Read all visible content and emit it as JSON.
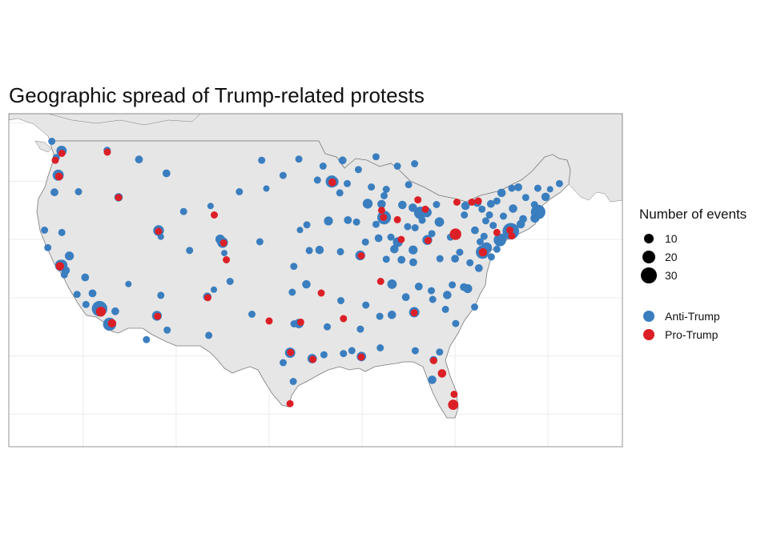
{
  "title": "Geographic spread of Trump-related protests",
  "legend": {
    "size_title": "Number of events",
    "sizes": [
      {
        "label": "10",
        "value": 10
      },
      {
        "label": "20",
        "value": 20
      },
      {
        "label": "30",
        "value": 30
      }
    ],
    "colors": [
      {
        "label": "Anti-Trump",
        "color": "#3a7ebf"
      },
      {
        "label": "Pro-Trump",
        "color": "#dc1f26"
      }
    ]
  },
  "colors": {
    "land": "#e6e6e6",
    "border": "#7a7a7a",
    "grid": "#ececec",
    "anti": "#3a7ebf",
    "pro": "#dc1f26"
  },
  "chart_data": {
    "type": "scatter",
    "x_axis": "longitude",
    "y_axis": "latitude",
    "xlim": [
      -128,
      -62
    ],
    "ylim": [
      22.2,
      50.8
    ],
    "size_variable": "number of events",
    "anti_trump": [
      [
        -122.42,
        37.77,
        12
      ],
      [
        -122.27,
        37.8,
        10
      ],
      [
        -121.89,
        37.34,
        5
      ],
      [
        -121.49,
        38.58,
        6
      ],
      [
        -122.03,
        36.97,
        3
      ],
      [
        -122.68,
        45.52,
        11
      ],
      [
        -122.33,
        47.61,
        9
      ],
      [
        -123.09,
        44.05,
        4
      ],
      [
        -123.37,
        48.43,
        3
      ],
      [
        -122.9,
        47.04,
        3
      ],
      [
        -118.24,
        34.05,
        26
      ],
      [
        -117.16,
        32.72,
        17
      ],
      [
        -116.55,
        33.83,
        4
      ],
      [
        -119.0,
        35.37,
        4
      ],
      [
        -119.79,
        36.74,
        4
      ],
      [
        -115.14,
        36.17,
        2
      ],
      [
        -111.89,
        40.76,
        10
      ],
      [
        -111.65,
        40.23,
        2
      ],
      [
        -112.07,
        33.45,
        8
      ],
      [
        -110.97,
        32.22,
        3
      ],
      [
        -105.0,
        39.74,
        10
      ],
      [
        -105.27,
        40.01,
        7
      ],
      [
        -104.82,
        38.83,
        2
      ],
      [
        -106.65,
        35.08,
        5
      ],
      [
        -105.94,
        35.69,
        2
      ],
      [
        -116.2,
        43.62,
        5
      ],
      [
        -117.43,
        47.66,
        3
      ],
      [
        -114.0,
        46.87,
        4
      ],
      [
        -111.04,
        45.68,
        4
      ],
      [
        -106.3,
        42.87,
        2
      ],
      [
        -97.74,
        30.27,
        9
      ],
      [
        -96.8,
        32.78,
        7
      ],
      [
        -95.37,
        29.76,
        7
      ],
      [
        -98.49,
        29.42,
        3
      ],
      [
        -97.33,
        32.75,
        3
      ],
      [
        -97.52,
        35.47,
        3
      ],
      [
        -95.99,
        36.15,
        5
      ],
      [
        -97.34,
        37.69,
        3
      ],
      [
        -94.58,
        39.1,
        5
      ],
      [
        -95.68,
        39.05,
        3
      ],
      [
        -96.68,
        40.81,
        2
      ],
      [
        -95.94,
        41.26,
        3
      ],
      [
        -93.27,
        44.98,
        14
      ],
      [
        -93.09,
        44.95,
        9
      ],
      [
        -92.1,
        46.79,
        4
      ],
      [
        -93.62,
        41.59,
        6
      ],
      [
        -91.53,
        41.66,
        4
      ],
      [
        -89.4,
        43.07,
        8
      ],
      [
        -87.91,
        43.04,
        5
      ],
      [
        -87.63,
        41.88,
        19
      ],
      [
        -88.23,
        40.11,
        4
      ],
      [
        -89.64,
        39.78,
        3
      ],
      [
        -90.2,
        38.63,
        8
      ],
      [
        -92.33,
        38.95,
        3
      ],
      [
        -90.07,
        29.95,
        7
      ],
      [
        -90.18,
        32.3,
        3
      ],
      [
        -92.29,
        34.75,
        3
      ],
      [
        -86.78,
        36.16,
        7
      ],
      [
        -86.8,
        33.52,
        5
      ],
      [
        -84.39,
        33.75,
        9
      ],
      [
        -84.28,
        30.44,
        3
      ],
      [
        -82.46,
        27.95,
        5
      ],
      [
        -81.38,
        28.54,
        3
      ],
      [
        -80.19,
        25.76,
        4
      ],
      [
        -82.32,
        29.65,
        4
      ],
      [
        -81.66,
        30.33,
        3
      ],
      [
        -80.84,
        35.23,
        5
      ],
      [
        -78.64,
        35.78,
        6
      ],
      [
        -79.05,
        35.91,
        4
      ],
      [
        -77.44,
        37.54,
        4
      ],
      [
        -77.04,
        38.91,
        18
      ],
      [
        -76.61,
        39.29,
        10
      ],
      [
        -75.17,
        39.95,
        15
      ],
      [
        -74.0,
        40.71,
        30
      ],
      [
        -73.93,
        40.68,
        10
      ],
      [
        -72.93,
        41.31,
        5
      ],
      [
        -72.68,
        41.76,
        4
      ],
      [
        -71.06,
        42.36,
        22
      ],
      [
        -71.41,
        41.82,
        6
      ],
      [
        -71.46,
        42.99,
        3
      ],
      [
        -73.2,
        44.48,
        4
      ],
      [
        -73.76,
        42.65,
        5
      ],
      [
        -76.15,
        43.05,
        4
      ],
      [
        -77.61,
        43.16,
        5
      ],
      [
        -78.88,
        42.89,
        5
      ],
      [
        -75.0,
        44.0,
        5
      ],
      [
        -70.26,
        43.66,
        5
      ],
      [
        -69.78,
        44.31,
        2
      ],
      [
        -68.77,
        44.8,
        3
      ],
      [
        -79.99,
        40.44,
        9
      ],
      [
        -77.86,
        40.79,
        4
      ],
      [
        -76.88,
        40.27,
        3
      ],
      [
        -82.99,
        39.96,
        8
      ],
      [
        -81.69,
        41.5,
        7
      ],
      [
        -84.51,
        39.1,
        6
      ],
      [
        -83.54,
        41.65,
        3
      ],
      [
        -83.05,
        42.33,
        8
      ],
      [
        -83.74,
        42.28,
        15
      ],
      [
        -84.55,
        42.73,
        5
      ],
      [
        -85.67,
        42.96,
        5
      ],
      [
        -86.16,
        39.77,
        8
      ],
      [
        -86.53,
        39.17,
        5
      ],
      [
        -85.76,
        38.25,
        4
      ],
      [
        -84.5,
        38.04,
        4
      ],
      [
        -80.0,
        38.35,
        4
      ],
      [
        -81.63,
        38.35,
        3
      ],
      [
        -81.03,
        34.0,
        3
      ],
      [
        -82.4,
        34.85,
        3
      ],
      [
        -79.93,
        32.78,
        3
      ],
      [
        -88.05,
        30.69,
        3
      ],
      [
        -87.63,
        43.75,
        3
      ],
      [
        -89.0,
        44.5,
        3
      ],
      [
        -90.4,
        46.0,
        3
      ],
      [
        -84.35,
        46.5,
        3
      ],
      [
        -86.2,
        46.3,
        3
      ],
      [
        -88.5,
        47.1,
        3
      ],
      [
        -87.4,
        44.3,
        3
      ],
      [
        -85.0,
        44.7,
        3
      ],
      [
        -82.0,
        43.0,
        3
      ],
      [
        -79.0,
        42.1,
        3
      ],
      [
        -75.5,
        43.3,
        3
      ],
      [
        -74.8,
        42.0,
        3
      ],
      [
        -77.1,
        42.6,
        3
      ],
      [
        -80.5,
        40.2,
        3
      ],
      [
        -82.5,
        40.5,
        3
      ],
      [
        -84.3,
        41.0,
        3
      ],
      [
        -85.1,
        41.1,
        3
      ],
      [
        -86.9,
        40.2,
        3
      ],
      [
        -87.4,
        38.3,
        3
      ],
      [
        -88.5,
        41.3,
        3
      ],
      [
        -90.6,
        41.5,
        3
      ],
      [
        -91.6,
        44.8,
        3
      ],
      [
        -94.2,
        46.3,
        3
      ],
      [
        -96.8,
        46.9,
        3
      ],
      [
        -100.8,
        46.8,
        3
      ],
      [
        -103.2,
        44.1,
        3
      ],
      [
        -101.0,
        39.8,
        3
      ],
      [
        -100.3,
        44.37,
        2
      ],
      [
        -98.5,
        45.5,
        3
      ],
      [
        -92.4,
        44.0,
        3
      ],
      [
        -94.8,
        45.1,
        3
      ],
      [
        -77.3,
        39.8,
        3
      ],
      [
        -76.1,
        38.5,
        3
      ],
      [
        -75.5,
        39.16,
        3
      ],
      [
        -74.76,
        40.22,
        3
      ],
      [
        -75.9,
        41.2,
        3
      ],
      [
        -76.3,
        42.1,
        3
      ],
      [
        -73.9,
        44.4,
        3
      ],
      [
        -72.4,
        43.6,
        3
      ],
      [
        -71.1,
        44.4,
        3
      ],
      [
        -76.7,
        41.6,
        3
      ],
      [
        -78.4,
        38.0,
        3
      ],
      [
        -79.5,
        38.9,
        3
      ],
      [
        -77.9,
        34.2,
        3
      ],
      [
        -80.3,
        36.1,
        3
      ],
      [
        -82.55,
        35.6,
        3
      ],
      [
        -83.9,
        35.96,
        4
      ],
      [
        -85.3,
        35.05,
        4
      ],
      [
        -88.1,
        33.4,
        3
      ],
      [
        -89.6,
        34.36,
        3
      ],
      [
        -91.1,
        30.45,
        3
      ],
      [
        -92.0,
        30.2,
        3
      ],
      [
        -93.75,
        32.5,
        3
      ],
      [
        -94.1,
        30.1,
        3
      ],
      [
        -97.4,
        27.8,
        3
      ],
      [
        -101.85,
        33.58,
        3
      ],
      [
        -106.49,
        31.76,
        3
      ],
      [
        -104.2,
        36.4,
        3
      ],
      [
        -108.55,
        39.06,
        3
      ],
      [
        -109.2,
        42.4,
        3
      ],
      [
        -111.65,
        35.2,
        3
      ],
      [
        -113.2,
        31.4,
        3
      ],
      [
        -119.7,
        34.42,
        3
      ],
      [
        -120.66,
        35.28,
        3
      ],
      [
        -123.8,
        39.3,
        3
      ],
      [
        -124.16,
        40.8,
        3
      ],
      [
        -122.3,
        40.6,
        3
      ],
      [
        -120.5,
        44.1,
        3
      ]
    ],
    "pro_trump": [
      [
        -122.5,
        37.7,
        5
      ],
      [
        -122.6,
        45.4,
        4
      ],
      [
        -123.0,
        46.8,
        3
      ],
      [
        -122.3,
        47.4,
        3
      ],
      [
        -118.1,
        33.8,
        8
      ],
      [
        -116.9,
        32.8,
        5
      ],
      [
        -111.9,
        40.7,
        3
      ],
      [
        -104.9,
        39.7,
        3
      ],
      [
        -97.7,
        30.3,
        3
      ],
      [
        -95.3,
        29.7,
        3
      ],
      [
        -97.75,
        25.9,
        3
      ],
      [
        -96.6,
        32.9,
        3
      ],
      [
        -94.4,
        35.4,
        3
      ],
      [
        -92.0,
        33.2,
        3
      ],
      [
        -90.1,
        29.9,
        3
      ],
      [
        -87.7,
        41.9,
        3
      ],
      [
        -87.9,
        42.5,
        3
      ],
      [
        -90.1,
        38.6,
        3
      ],
      [
        -84.4,
        33.7,
        3
      ],
      [
        -82.3,
        29.6,
        3
      ],
      [
        -80.2,
        25.8,
        9
      ],
      [
        -81.4,
        28.5,
        5
      ],
      [
        -80.1,
        26.7,
        3
      ],
      [
        -77.0,
        38.9,
        5
      ],
      [
        -74.1,
        40.8,
        3
      ],
      [
        -73.9,
        40.3,
        3
      ],
      [
        -75.5,
        40.6,
        3
      ],
      [
        -79.95,
        40.45,
        12
      ],
      [
        -82.9,
        39.9,
        3
      ],
      [
        -83.2,
        42.6,
        3
      ],
      [
        -84.0,
        43.4,
        3
      ],
      [
        -86.2,
        41.7,
        3
      ],
      [
        -85.8,
        40.0,
        3
      ],
      [
        -88.0,
        36.4,
        3
      ],
      [
        -93.2,
        44.9,
        4
      ],
      [
        -78.2,
        43.2,
        3
      ],
      [
        -77.5,
        43.3,
        3
      ],
      [
        -105.9,
        42.1,
        3
      ],
      [
        -112.0,
        33.4,
        3
      ],
      [
        -116.2,
        43.6,
        3
      ],
      [
        -106.6,
        35.0,
        3
      ],
      [
        -104.6,
        38.25,
        3
      ],
      [
        -100.0,
        33.0,
        3
      ],
      [
        -117.4,
        47.5,
        3
      ],
      [
        -79.8,
        43.2,
        3
      ]
    ]
  }
}
